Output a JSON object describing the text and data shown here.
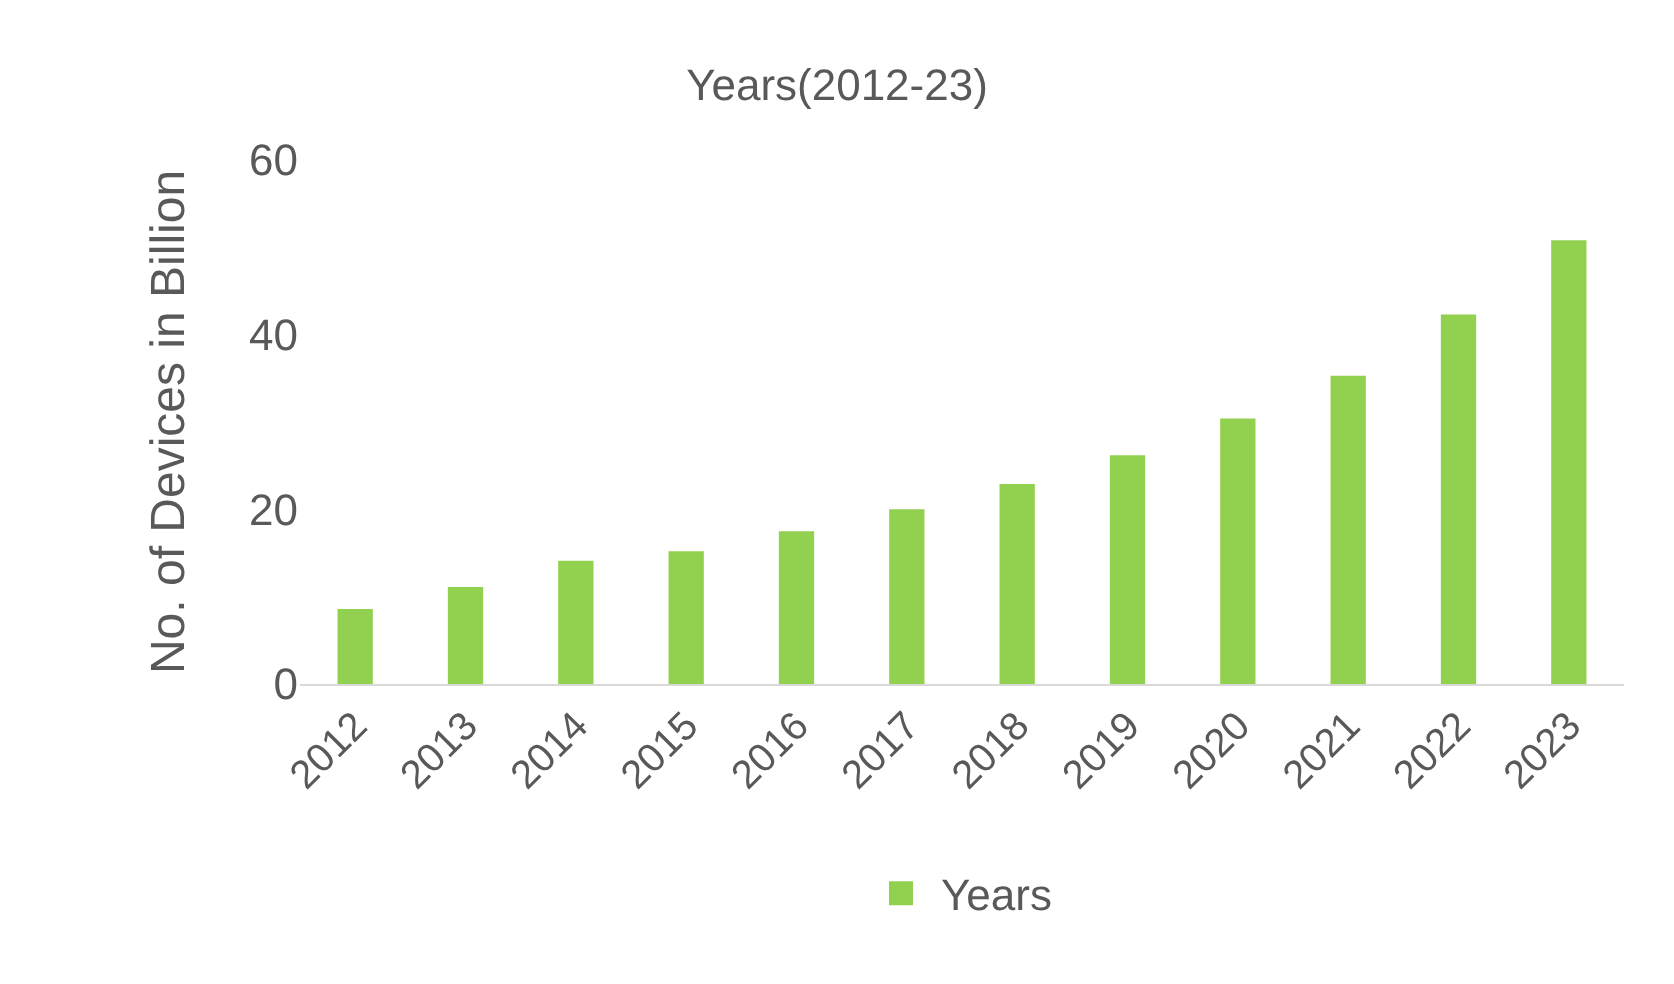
{
  "chart_data": {
    "type": "bar",
    "title": "Years(2012-23)",
    "ylabel": "No. of Devices in Billion",
    "categories": [
      "2012",
      "2013",
      "2014",
      "2015",
      "2016",
      "2017",
      "2018",
      "2019",
      "2020",
      "2021",
      "2022",
      "2023"
    ],
    "series": [
      {
        "name": "Years",
        "color": "#92d050",
        "values": [
          8.6,
          11.1,
          14.1,
          15.2,
          17.5,
          20.0,
          22.9,
          26.2,
          30.4,
          35.3,
          42.3,
          50.8
        ]
      }
    ],
    "ylim": [
      0,
      60
    ],
    "yticks": [
      0,
      20,
      40,
      60
    ],
    "grid": false,
    "legend": "bottom"
  }
}
